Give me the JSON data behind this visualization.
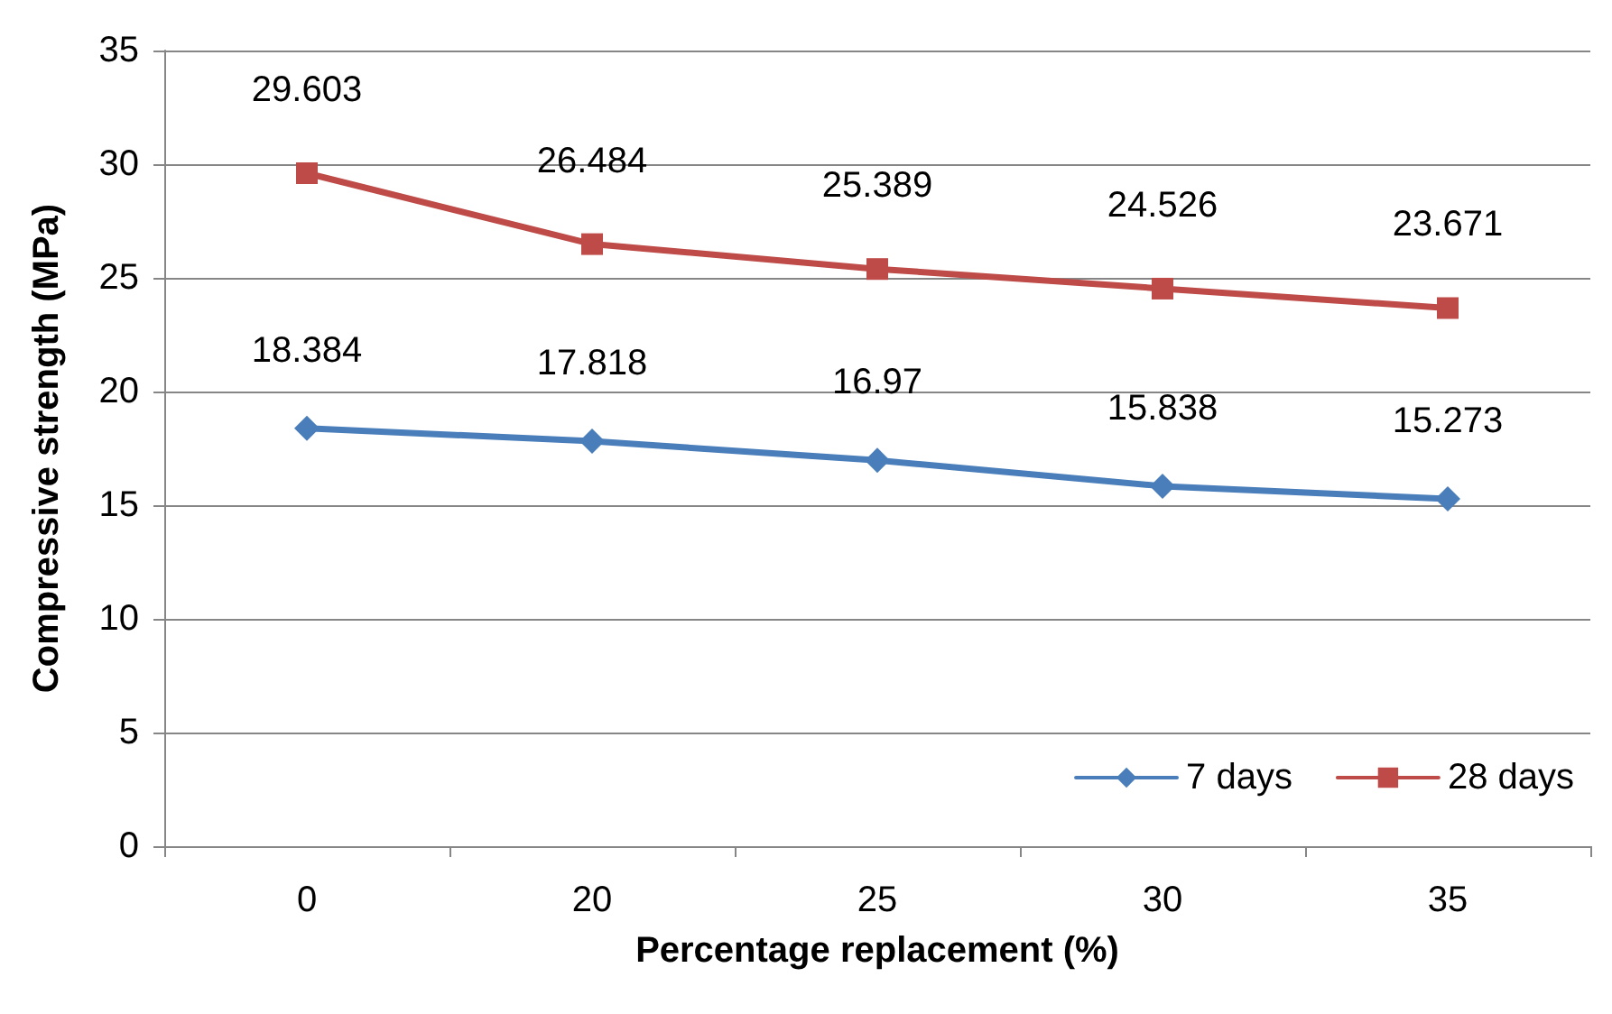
{
  "chart_data": {
    "type": "line",
    "xlabel": "Percentage replacement (%)",
    "ylabel": "Compressive strength (MPa)",
    "categories": [
      "0",
      "20",
      "25",
      "30",
      "35"
    ],
    "series": [
      {
        "name": "7 days",
        "color": "#4a7ebb",
        "marker": "diamond",
        "values": [
          18.384,
          17.818,
          16.97,
          15.838,
          15.273
        ]
      },
      {
        "name": "28 days",
        "color": "#be4b48",
        "marker": "square",
        "values": [
          29.603,
          26.484,
          25.389,
          24.526,
          23.671
        ]
      }
    ],
    "ylim": [
      0,
      35
    ],
    "yticks": [
      0,
      5,
      10,
      15,
      20,
      25,
      30,
      35
    ],
    "grid": "y",
    "legend": "bottom right",
    "data_labels": true
  }
}
